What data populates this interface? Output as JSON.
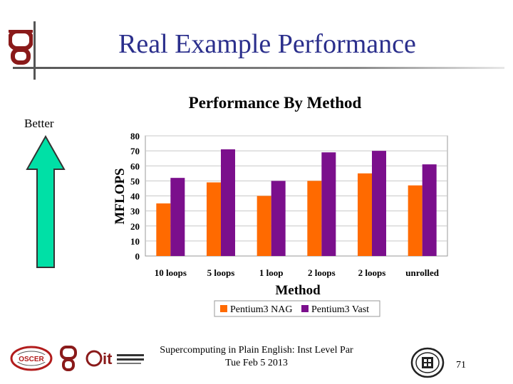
{
  "slide": {
    "title": "Real Example Performance",
    "better_label": "Better",
    "footer_line1": "Supercomputing in Plain English: Inst Level Par",
    "footer_line2": "Tue Feb 5 2013",
    "page_number": "71"
  },
  "colors": {
    "title": "#2b2f8c",
    "series_nag": "#ff6a00",
    "series_vast": "#7b0f8c",
    "arrow_fill": "#00e0a6",
    "ou_crimson": "#8a1a1a"
  },
  "chart_data": {
    "type": "bar",
    "title": "Performance By Method",
    "xlabel": "Method",
    "ylabel": "MFLOPS",
    "ylim": [
      0,
      80
    ],
    "yticks": [
      0,
      10,
      20,
      30,
      40,
      50,
      60,
      70,
      80
    ],
    "grid": true,
    "legend": "bottom",
    "categories": [
      "10 loops",
      "5 loops",
      "1 loop",
      "2 loops",
      "2 loops",
      "unrolled"
    ],
    "series": [
      {
        "name": "Pentium3 NAG",
        "values": [
          35,
          49,
          40,
          50,
          55,
          47
        ]
      },
      {
        "name": "Pentium3 Vast",
        "values": [
          52,
          71,
          50,
          69,
          70,
          61
        ]
      }
    ]
  }
}
